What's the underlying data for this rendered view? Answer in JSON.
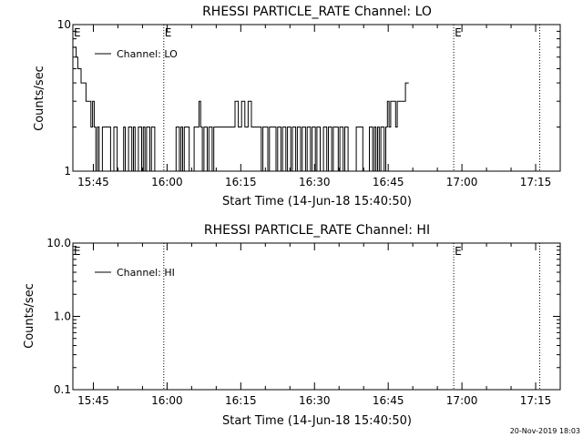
{
  "footer": {
    "timestamp": "20-Nov-2019 18:03"
  },
  "chart_data": [
    {
      "type": "line",
      "title": "RHESSI PARTICLE_RATE Channel: LO",
      "xlabel": "Start Time (14-Jun-18 15:40:50)",
      "ylabel": "Counts/sec",
      "yscale": "log",
      "ylim": [
        1,
        10
      ],
      "xlim": [
        "15:40:50",
        "17:20:00"
      ],
      "x_tick_labels": [
        "15:45",
        "16:00",
        "16:15",
        "16:30",
        "16:45",
        "17:00",
        "17:15"
      ],
      "y_tick_labels": [
        "1",
        "10"
      ],
      "event_markers": [
        {
          "time": "15:40:50",
          "label": "E"
        },
        {
          "time": "15:59:20",
          "label": "E"
        },
        {
          "time": "16:58:20",
          "label": "E"
        },
        {
          "time": "17:15:50",
          "label": ""
        }
      ],
      "legend": {
        "position": "top-left",
        "entries": [
          "Channel: LO"
        ]
      },
      "series": [
        {
          "name": "Channel: LO",
          "x_start": "15:40:50",
          "dt_seconds": 20,
          "values": [
            7,
            7,
            6,
            5,
            5,
            4,
            4,
            4,
            3,
            3,
            3,
            2,
            3,
            2,
            1,
            2,
            1,
            1,
            2,
            2,
            2,
            2,
            2,
            1,
            1,
            2,
            2,
            1,
            1,
            1,
            1,
            2,
            1,
            1,
            2,
            2,
            1,
            2,
            1,
            1,
            2,
            2,
            1,
            2,
            1,
            2,
            2,
            1,
            2,
            2,
            1,
            1,
            1,
            1,
            1,
            1,
            1,
            1,
            1,
            1,
            1,
            1,
            1,
            2,
            2,
            1,
            2,
            1,
            2,
            2,
            2,
            1,
            1,
            1,
            2,
            2,
            2,
            3,
            2,
            1,
            2,
            2,
            1,
            2,
            2,
            1,
            2,
            2,
            2,
            2,
            2,
            2,
            2,
            2,
            2,
            2,
            2,
            2,
            2,
            3,
            3,
            2,
            2,
            3,
            3,
            2,
            2,
            3,
            3,
            2,
            2,
            2,
            2,
            2,
            2,
            1,
            2,
            2,
            2,
            1,
            2,
            2,
            2,
            2,
            1,
            2,
            2,
            1,
            2,
            2,
            1,
            2,
            2,
            1,
            2,
            2,
            1,
            2,
            2,
            1,
            2,
            2,
            1,
            2,
            2,
            1,
            2,
            2,
            1,
            2,
            2,
            1,
            1,
            2,
            2,
            1,
            2,
            2,
            1,
            2,
            2,
            2,
            1,
            2,
            2,
            1,
            2,
            2,
            1,
            1,
            1,
            1,
            1,
            2,
            2,
            2,
            2,
            1,
            1,
            1,
            1,
            2,
            2,
            1,
            2,
            1,
            2,
            1,
            2,
            2,
            1,
            2,
            3,
            2,
            3,
            3,
            3,
            2,
            3,
            3,
            3,
            3,
            3,
            4,
            4
          ]
        }
      ]
    },
    {
      "type": "line",
      "title": "RHESSI PARTICLE_RATE Channel: HI",
      "xlabel": "Start Time (14-Jun-18 15:40:50)",
      "ylabel": "Counts/sec",
      "yscale": "log",
      "ylim": [
        0.1,
        10
      ],
      "xlim": [
        "15:40:50",
        "17:20:00"
      ],
      "x_tick_labels": [
        "15:45",
        "16:00",
        "16:15",
        "16:30",
        "16:45",
        "17:00",
        "17:15"
      ],
      "y_tick_labels": [
        "0.1",
        "1.0",
        "10.0"
      ],
      "event_markers": [
        {
          "time": "15:40:50",
          "label": "E"
        },
        {
          "time": "15:59:20",
          "label": ""
        },
        {
          "time": "16:58:20",
          "label": "E"
        },
        {
          "time": "17:15:50",
          "label": ""
        }
      ],
      "legend": {
        "position": "top-left",
        "entries": [
          "Channel: HI"
        ]
      },
      "series": [
        {
          "name": "Channel: HI",
          "values": []
        }
      ]
    }
  ]
}
